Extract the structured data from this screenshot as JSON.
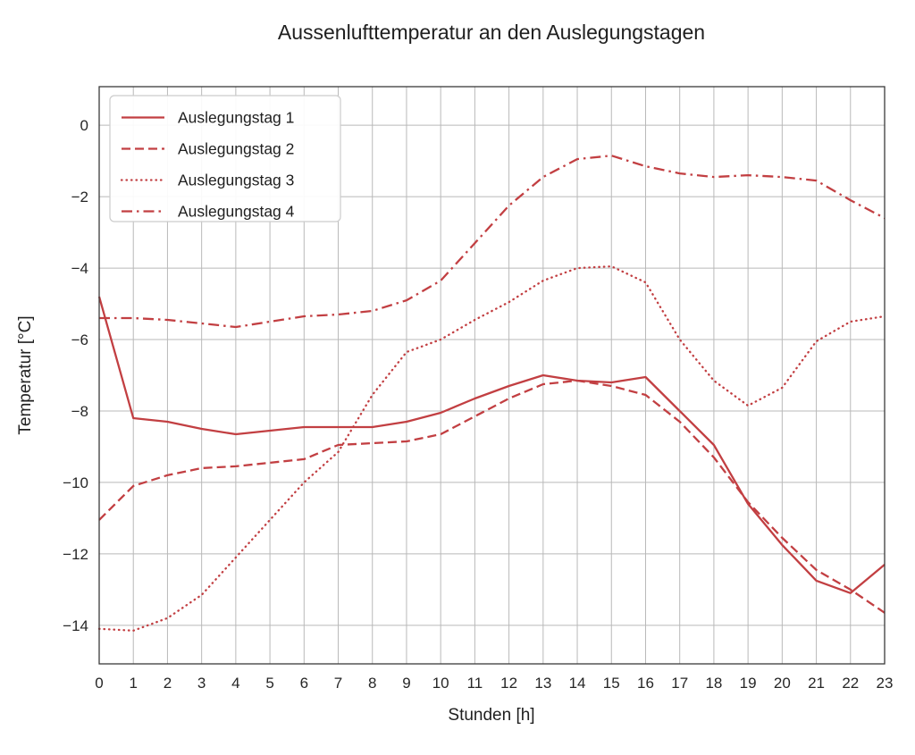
{
  "chart_data": {
    "type": "line",
    "title": "Aussenlufttemperatur an den Auslegungstagen",
    "xlabel": "Stunden [h]",
    "ylabel": "Temperatur [°C]",
    "grid": true,
    "legend_position": "upper-left",
    "line_color": "#c23f42",
    "grid_color": "#b9b9b9",
    "spine_color": "#3a3a3a",
    "xlim": [
      0,
      23
    ],
    "ylim": [
      -15.08,
      1.08
    ],
    "x": [
      0,
      1,
      2,
      3,
      4,
      5,
      6,
      7,
      8,
      9,
      10,
      11,
      12,
      13,
      14,
      15,
      16,
      17,
      18,
      19,
      20,
      21,
      22,
      23
    ],
    "x_tick_labels": [
      "0",
      "1",
      "2",
      "3",
      "4",
      "5",
      "6",
      "7",
      "8",
      "9",
      "10",
      "11",
      "12",
      "13",
      "14",
      "15",
      "16",
      "17",
      "18",
      "19",
      "20",
      "21",
      "22",
      "23"
    ],
    "y_tick_values": [
      0,
      -2,
      -4,
      -6,
      -8,
      -10,
      -12,
      -14
    ],
    "y_tick_labels": [
      "0",
      "−2",
      "−4",
      "−6",
      "−8",
      "−10",
      "−12",
      "−14"
    ],
    "series": [
      {
        "name": "Auslegungstag 1",
        "linestyle": "solid",
        "values": [
          -4.8,
          -8.2,
          -8.3,
          -8.5,
          -8.65,
          -8.55,
          -8.45,
          -8.45,
          -8.45,
          -8.3,
          -8.05,
          -7.65,
          -7.3,
          -7.0,
          -7.15,
          -7.2,
          -7.05,
          -8.0,
          -8.95,
          -10.6,
          -11.75,
          -12.75,
          -13.1,
          -12.3
        ]
      },
      {
        "name": "Auslegungstag 2",
        "linestyle": "dashed",
        "values": [
          -11.05,
          -10.1,
          -9.8,
          -9.6,
          -9.55,
          -9.45,
          -9.35,
          -8.95,
          -8.9,
          -8.85,
          -8.65,
          -8.15,
          -7.65,
          -7.25,
          -7.15,
          -7.3,
          -7.55,
          -8.3,
          -9.3,
          -10.55,
          -11.55,
          -12.45,
          -13.0,
          -13.65
        ]
      },
      {
        "name": "Auslegungstag 3",
        "linestyle": "dotted",
        "values": [
          -14.1,
          -14.15,
          -13.8,
          -13.15,
          -12.1,
          -11.05,
          -10.0,
          -9.15,
          -7.55,
          -6.35,
          -6.0,
          -5.45,
          -4.95,
          -4.35,
          -4.0,
          -3.95,
          -4.4,
          -6.0,
          -7.15,
          -7.85,
          -7.35,
          -6.05,
          -5.5,
          -5.35
        ]
      },
      {
        "name": "Auslegungstag 4",
        "linestyle": "dashdot",
        "values": [
          -5.4,
          -5.4,
          -5.45,
          -5.55,
          -5.65,
          -5.5,
          -5.35,
          -5.3,
          -5.2,
          -4.9,
          -4.35,
          -3.3,
          -2.25,
          -1.45,
          -0.95,
          -0.85,
          -1.15,
          -1.35,
          -1.45,
          -1.4,
          -1.45,
          -1.55,
          -2.1,
          -2.6
        ]
      }
    ]
  }
}
